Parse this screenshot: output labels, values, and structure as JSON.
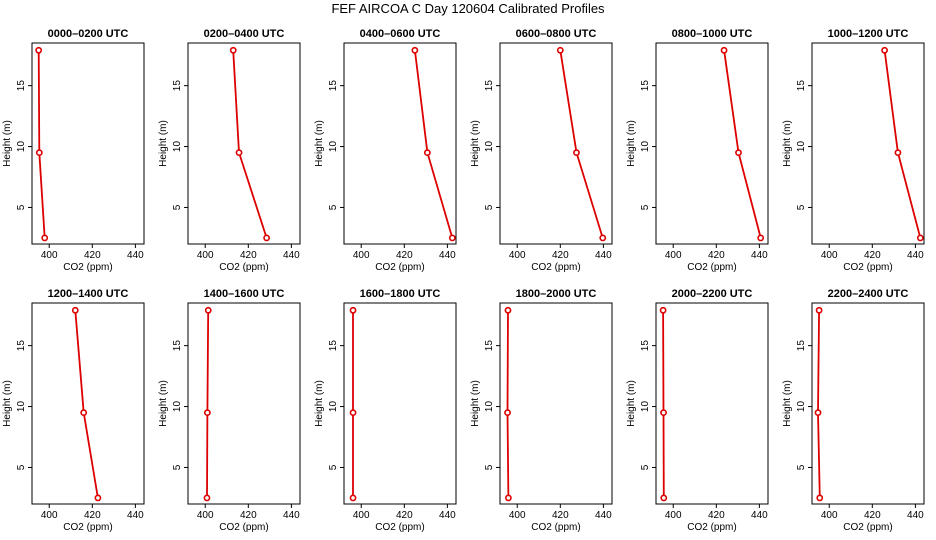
{
  "title": "FEF AIRCOA C  Day 120604  Calibrated Profiles",
  "colors": {
    "line": "#dd0000",
    "marker": "#dd0000",
    "axis": "#000000",
    "background": "#ffffff"
  },
  "chart_data": [
    {
      "type": "line",
      "title": "0000–0200 UTC",
      "xlabel": "CO2 (ppm)",
      "ylabel": "Height (m)",
      "xlim": [
        392,
        444
      ],
      "ylim": [
        2,
        18.5
      ],
      "xticks": [
        400,
        420,
        440
      ],
      "yticks": [
        5,
        10,
        15
      ],
      "x": [
        395.1,
        395.4,
        397.9
      ],
      "y": [
        17.9,
        9.5,
        2.5
      ]
    },
    {
      "type": "line",
      "title": "0200–0400 UTC",
      "xlabel": "CO2 (ppm)",
      "ylabel": "Height (m)",
      "xlim": [
        392,
        444
      ],
      "ylim": [
        2,
        18.5
      ],
      "xticks": [
        400,
        420,
        440
      ],
      "yticks": [
        5,
        10,
        15
      ],
      "x": [
        413.0,
        415.7,
        428.5
      ],
      "y": [
        17.9,
        9.5,
        2.5
      ]
    },
    {
      "type": "line",
      "title": "0400–0600 UTC",
      "xlabel": "CO2 (ppm)",
      "ylabel": "Height (m)",
      "xlim": [
        392,
        444
      ],
      "ylim": [
        2,
        18.5
      ],
      "xticks": [
        400,
        420,
        440
      ],
      "yticks": [
        5,
        10,
        15
      ],
      "x": [
        424.9,
        430.7,
        442.3
      ],
      "y": [
        17.9,
        9.5,
        2.5
      ]
    },
    {
      "type": "line",
      "title": "0600–0800 UTC",
      "xlabel": "CO2 (ppm)",
      "ylabel": "Height (m)",
      "xlim": [
        392,
        444
      ],
      "ylim": [
        2,
        18.5
      ],
      "xticks": [
        400,
        420,
        440
      ],
      "yticks": [
        5,
        10,
        15
      ],
      "x": [
        420.0,
        427.5,
        439.7
      ],
      "y": [
        17.9,
        9.5,
        2.5
      ]
    },
    {
      "type": "line",
      "title": "0800–1000 UTC",
      "xlabel": "CO2 (ppm)",
      "ylabel": "Height (m)",
      "xlim": [
        392,
        444
      ],
      "ylim": [
        2,
        18.5
      ],
      "xticks": [
        400,
        420,
        440
      ],
      "yticks": [
        5,
        10,
        15
      ],
      "x": [
        423.6,
        430.3,
        440.6
      ],
      "y": [
        17.9,
        9.5,
        2.5
      ]
    },
    {
      "type": "line",
      "title": "1000–1200 UTC",
      "xlabel": "CO2 (ppm)",
      "ylabel": "Height (m)",
      "xlim": [
        392,
        444
      ],
      "ylim": [
        2,
        18.5
      ],
      "xticks": [
        400,
        420,
        440
      ],
      "yticks": [
        5,
        10,
        15
      ],
      "x": [
        425.7,
        431.9,
        442.3
      ],
      "y": [
        17.9,
        9.5,
        2.5
      ]
    },
    {
      "type": "line",
      "title": "1200–1400 UTC",
      "xlabel": "CO2 (ppm)",
      "ylabel": "Height (m)",
      "xlim": [
        392,
        444
      ],
      "ylim": [
        2,
        18.5
      ],
      "xticks": [
        400,
        420,
        440
      ],
      "yticks": [
        5,
        10,
        15
      ],
      "x": [
        412.1,
        416.0,
        422.6
      ],
      "y": [
        17.9,
        9.5,
        2.5
      ]
    },
    {
      "type": "line",
      "title": "1400–1600 UTC",
      "xlabel": "CO2 (ppm)",
      "ylabel": "Height (m)",
      "xlim": [
        392,
        444
      ],
      "ylim": [
        2,
        18.5
      ],
      "xticks": [
        400,
        420,
        440
      ],
      "yticks": [
        5,
        10,
        15
      ],
      "x": [
        401.4,
        401.0,
        400.8
      ],
      "y": [
        17.9,
        9.5,
        2.5
      ]
    },
    {
      "type": "line",
      "title": "1600–1800 UTC",
      "xlabel": "CO2 (ppm)",
      "ylabel": "Height (m)",
      "xlim": [
        392,
        444
      ],
      "ylim": [
        2,
        18.5
      ],
      "xticks": [
        400,
        420,
        440
      ],
      "yticks": [
        5,
        10,
        15
      ],
      "x": [
        396.2,
        396.2,
        396.2
      ],
      "y": [
        17.9,
        9.5,
        2.5
      ]
    },
    {
      "type": "line",
      "title": "1800–2000 UTC",
      "xlabel": "CO2 (ppm)",
      "ylabel": "Height (m)",
      "xlim": [
        392,
        444
      ],
      "ylim": [
        2,
        18.5
      ],
      "xticks": [
        400,
        420,
        440
      ],
      "yticks": [
        5,
        10,
        15
      ],
      "x": [
        395.7,
        395.5,
        395.9
      ],
      "y": [
        17.9,
        9.5,
        2.5
      ]
    },
    {
      "type": "line",
      "title": "2000–2200 UTC",
      "xlabel": "CO2 (ppm)",
      "ylabel": "Height (m)",
      "xlim": [
        392,
        444
      ],
      "ylim": [
        2,
        18.5
      ],
      "xticks": [
        400,
        420,
        440
      ],
      "yticks": [
        5,
        10,
        15
      ],
      "x": [
        395.3,
        395.5,
        395.6
      ],
      "y": [
        17.9,
        9.5,
        2.5
      ]
    },
    {
      "type": "line",
      "title": "2200–2400 UTC",
      "xlabel": "CO2 (ppm)",
      "ylabel": "Height (m)",
      "xlim": [
        392,
        444
      ],
      "ylim": [
        2,
        18.5
      ],
      "xticks": [
        400,
        420,
        440
      ],
      "yticks": [
        5,
        10,
        15
      ],
      "x": [
        395.3,
        394.8,
        395.6
      ],
      "y": [
        17.9,
        9.5,
        2.5
      ]
    }
  ]
}
